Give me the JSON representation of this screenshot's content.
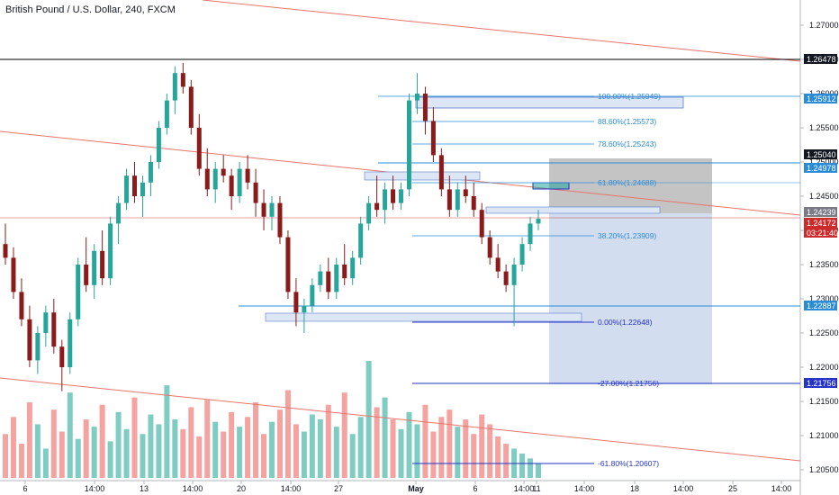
{
  "title": "British Pound / U.S. Dollar, 240, FXCM",
  "colors": {
    "up": "#26a69a",
    "down": "#8b1a1a",
    "vol_up": "#7fcdc2",
    "vol_down": "#f4a3a0",
    "trendline": "#e8746b",
    "fib": "#2a8bd8",
    "fib_ext": "#2633c7",
    "zone": "#dde6f5",
    "zone_border": "#5a7ec8",
    "current": "#cc2b2b",
    "hline_black": "#000000"
  },
  "chart_data": {
    "type": "candlestick",
    "title": "British Pound / U.S. Dollar, 240, FXCM",
    "y_axis": {
      "ylim": [
        1.2035,
        1.2785
      ],
      "ticks": [
        "1.27000",
        "1.26500",
        "1.26000",
        "1.25500",
        "1.25000",
        "1.24500",
        "1.24000",
        "1.23500",
        "1.23000",
        "1.22500",
        "1.22000",
        "1.21500",
        "1.21000",
        "1.20500"
      ]
    },
    "x_axis": {
      "ticks": [
        "6",
        "14:00",
        "13",
        "14:00",
        "20",
        "14:00",
        "27",
        "May",
        "6",
        "14:00",
        "11",
        "14:00",
        "18",
        "14:00",
        "25",
        "14:00"
      ]
    },
    "price_tags": [
      {
        "value": "1.26478",
        "style": "dark"
      },
      {
        "value": "1.25912",
        "style": "blue"
      },
      {
        "value": "1.25040",
        "style": "dark"
      },
      {
        "value": "1.24978",
        "style": "blue"
      },
      {
        "value": "1.24239",
        "style": "gray"
      },
      {
        "value": "1.24172",
        "style": "red"
      },
      {
        "value": "03:21:40",
        "style": "red"
      },
      {
        "value": "1.22887",
        "style": "blue"
      },
      {
        "value": "1.21756",
        "style": "navy"
      }
    ],
    "fib_levels": [
      {
        "label": "100.00%(1.25949)",
        "price": 1.25949
      },
      {
        "label": "88.60%(1.25573)",
        "price": 1.25573
      },
      {
        "label": "78.60%(1.25243)",
        "price": 1.25243
      },
      {
        "label": "61.80%(1.24688)",
        "price": 1.24688
      },
      {
        "label": "38.20%(1.23909)",
        "price": 1.23909
      },
      {
        "label": "0.00%(1.22648)",
        "price": 1.22648
      },
      {
        "label": "-27.00%(1.21756)",
        "price": 1.21756
      },
      {
        "label": "-61.80%(1.20607)",
        "price": 1.20607
      }
    ],
    "candles": [
      [
        1.238,
        1.241,
        1.235,
        1.236
      ],
      [
        1.236,
        1.2375,
        1.23,
        1.231
      ],
      [
        1.231,
        1.233,
        1.226,
        1.227
      ],
      [
        1.227,
        1.229,
        1.22,
        1.221
      ],
      [
        1.221,
        1.226,
        1.219,
        1.225
      ],
      [
        1.225,
        1.229,
        1.223,
        1.228
      ],
      [
        1.228,
        1.23,
        1.222,
        1.223
      ],
      [
        1.223,
        1.224,
        1.2165,
        1.22
      ],
      [
        1.22,
        1.228,
        1.219,
        1.227
      ],
      [
        1.227,
        1.236,
        1.226,
        1.235
      ],
      [
        1.235,
        1.239,
        1.231,
        1.232
      ],
      [
        1.232,
        1.238,
        1.23,
        1.237
      ],
      [
        1.237,
        1.24,
        1.232,
        1.233
      ],
      [
        1.233,
        1.242,
        1.232,
        1.241
      ],
      [
        1.241,
        1.245,
        1.238,
        1.244
      ],
      [
        1.244,
        1.249,
        1.243,
        1.248
      ],
      [
        1.248,
        1.25,
        1.244,
        1.245
      ],
      [
        1.245,
        1.248,
        1.242,
        1.247
      ],
      [
        1.247,
        1.251,
        1.245,
        1.25
      ],
      [
        1.25,
        1.256,
        1.249,
        1.255
      ],
      [
        1.255,
        1.26,
        1.254,
        1.259
      ],
      [
        1.259,
        1.264,
        1.257,
        1.263
      ],
      [
        1.263,
        1.2645,
        1.26,
        1.261
      ],
      [
        1.261,
        1.262,
        1.254,
        1.255
      ],
      [
        1.255,
        1.257,
        1.248,
        1.249
      ],
      [
        1.249,
        1.252,
        1.245,
        1.246
      ],
      [
        1.246,
        1.25,
        1.244,
        1.249
      ],
      [
        1.249,
        1.251,
        1.247,
        1.248
      ],
      [
        1.248,
        1.249,
        1.243,
        1.245
      ],
      [
        1.245,
        1.25,
        1.244,
        1.249
      ],
      [
        1.249,
        1.251,
        1.246,
        1.247
      ],
      [
        1.247,
        1.249,
        1.242,
        1.244
      ],
      [
        1.244,
        1.246,
        1.24,
        1.242
      ],
      [
        1.242,
        1.245,
        1.24,
        1.244
      ],
      [
        1.244,
        1.245,
        1.238,
        1.239
      ],
      [
        1.239,
        1.24,
        1.23,
        1.231
      ],
      [
        1.231,
        1.233,
        1.226,
        1.228
      ],
      [
        1.228,
        1.23,
        1.225,
        1.229
      ],
      [
        1.229,
        1.233,
        1.228,
        1.232
      ],
      [
        1.232,
        1.235,
        1.231,
        1.234
      ],
      [
        1.234,
        1.236,
        1.23,
        1.231
      ],
      [
        1.231,
        1.236,
        1.23,
        1.235
      ],
      [
        1.235,
        1.238,
        1.232,
        1.233
      ],
      [
        1.233,
        1.237,
        1.232,
        1.236
      ],
      [
        1.236,
        1.242,
        1.235,
        1.241
      ],
      [
        1.241,
        1.245,
        1.24,
        1.244
      ],
      [
        1.244,
        1.248,
        1.242,
        1.243
      ],
      [
        1.243,
        1.247,
        1.241,
        1.246
      ],
      [
        1.246,
        1.248,
        1.243,
        1.244
      ],
      [
        1.244,
        1.247,
        1.243,
        1.246
      ],
      [
        1.246,
        1.26,
        1.245,
        1.259
      ],
      [
        1.259,
        1.263,
        1.257,
        1.26
      ],
      [
        1.26,
        1.261,
        1.254,
        1.256
      ],
      [
        1.256,
        1.258,
        1.25,
        1.251
      ],
      [
        1.251,
        1.252,
        1.245,
        1.246
      ],
      [
        1.246,
        1.248,
        1.242,
        1.243
      ],
      [
        1.243,
        1.247,
        1.242,
        1.246
      ],
      [
        1.246,
        1.248,
        1.244,
        1.245
      ],
      [
        1.245,
        1.247,
        1.242,
        1.243
      ],
      [
        1.243,
        1.244,
        1.238,
        1.239
      ],
      [
        1.239,
        1.24,
        1.235,
        1.236
      ],
      [
        1.236,
        1.238,
        1.233,
        1.234
      ],
      [
        1.234,
        1.235,
        1.231,
        1.232
      ],
      [
        1.232,
        1.236,
        1.226,
        1.235
      ],
      [
        1.235,
        1.239,
        1.234,
        1.238
      ],
      [
        1.238,
        1.242,
        1.237,
        1.241
      ],
      [
        1.241,
        1.243,
        1.24,
        1.2417
      ]
    ],
    "volume": [
      18,
      25,
      14,
      31,
      22,
      12,
      28,
      19,
      35,
      16,
      24,
      21,
      30,
      15,
      27,
      20,
      33,
      18,
      26,
      22,
      38,
      24,
      20,
      29,
      17,
      32,
      23,
      19,
      27,
      21,
      25,
      31,
      18,
      23,
      28,
      36,
      22,
      19,
      26,
      24,
      30,
      21,
      35,
      18,
      25,
      48,
      29,
      33,
      24,
      20,
      27,
      22,
      30,
      19,
      25,
      28,
      21,
      24,
      18,
      26,
      22,
      17,
      14,
      12,
      10,
      8,
      6
    ],
    "volume_max": 48
  }
}
